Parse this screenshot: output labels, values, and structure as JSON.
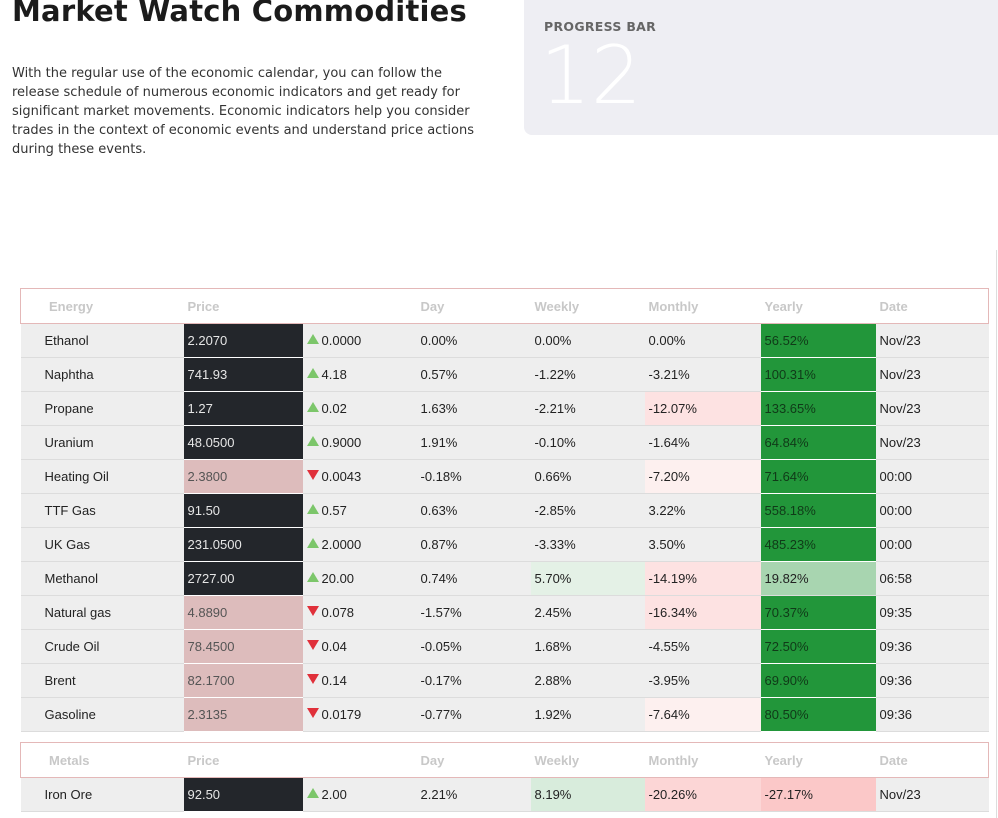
{
  "header": {
    "title": "Market Watch Commodities",
    "description": "With the regular use of the economic calendar, you can follow the release schedule of numerous economic indicators and get ready for significant market movements. Economic indicators help you consider trades in the context of economic events and understand price actions during these events."
  },
  "progress_card": {
    "label": "PROGRESS BAR",
    "value": "12"
  },
  "colors": {
    "up_strong": "#22963a",
    "price_dark": "#23262b",
    "price_down": "#ddbcbc",
    "arrow_up": "#7cc66a",
    "arrow_down": "#e0303a"
  },
  "tables": [
    {
      "id": "energy",
      "headers": [
        "Energy",
        "Price",
        "",
        "Day",
        "Weekly",
        "Monthly",
        "Yearly",
        "Date"
      ],
      "rows": [
        {
          "name": "Ethanol",
          "price": "2.2070",
          "dir": "up",
          "change": "0.0000",
          "day": "0.00%",
          "weekly": "0.00%",
          "monthly": "0.00%",
          "yearly": "56.52%",
          "date": "Nov/23",
          "tones": {
            "weekly": "",
            "monthly": "",
            "yearly": "up-strong"
          }
        },
        {
          "name": "Naphtha",
          "price": "741.93",
          "dir": "up",
          "change": "4.18",
          "day": "0.57%",
          "weekly": "-1.22%",
          "monthly": "-3.21%",
          "yearly": "100.31%",
          "date": "Nov/23",
          "tones": {
            "weekly": "",
            "monthly": "",
            "yearly": "up-strong"
          }
        },
        {
          "name": "Propane",
          "price": "1.27",
          "dir": "up",
          "change": "0.02",
          "day": "1.63%",
          "weekly": "-2.21%",
          "monthly": "-12.07%",
          "yearly": "133.65%",
          "date": "Nov/23",
          "tones": {
            "weekly": "",
            "monthly": "down-light",
            "yearly": "up-strong"
          }
        },
        {
          "name": "Uranium",
          "price": "48.0500",
          "dir": "up",
          "change": "0.9000",
          "day": "1.91%",
          "weekly": "-0.10%",
          "monthly": "-1.64%",
          "yearly": "64.84%",
          "date": "Nov/23",
          "tones": {
            "weekly": "",
            "monthly": "",
            "yearly": "up-strong"
          }
        },
        {
          "name": "Heating Oil",
          "price": "2.3800",
          "dir": "down",
          "change": "0.0043",
          "day": "-0.18%",
          "weekly": "0.66%",
          "monthly": "-7.20%",
          "yearly": "71.64%",
          "date": "00:00",
          "tones": {
            "weekly": "",
            "monthly": "down-faint",
            "yearly": "up-strong"
          }
        },
        {
          "name": "TTF Gas",
          "price": "91.50",
          "dir": "up",
          "change": "0.57",
          "day": "0.63%",
          "weekly": "-2.85%",
          "monthly": "3.22%",
          "yearly": "558.18%",
          "date": "00:00",
          "tones": {
            "weekly": "",
            "monthly": "",
            "yearly": "up-strong"
          }
        },
        {
          "name": "UK Gas",
          "price": "231.0500",
          "dir": "up",
          "change": "2.0000",
          "day": "0.87%",
          "weekly": "-3.33%",
          "monthly": "3.50%",
          "yearly": "485.23%",
          "date": "00:00",
          "tones": {
            "weekly": "",
            "monthly": "",
            "yearly": "up-strong"
          }
        },
        {
          "name": "Methanol",
          "price": "2727.00",
          "dir": "up",
          "change": "20.00",
          "day": "0.74%",
          "weekly": "5.70%",
          "monthly": "-14.19%",
          "yearly": "19.82%",
          "date": "06:58",
          "tones": {
            "weekly": "up-light",
            "monthly": "down-light",
            "yearly": "up-mid"
          }
        },
        {
          "name": "Natural gas",
          "price": "4.8890",
          "dir": "down",
          "change": "0.078",
          "day": "-1.57%",
          "weekly": "2.45%",
          "monthly": "-16.34%",
          "yearly": "70.37%",
          "date": "09:35",
          "tones": {
            "weekly": "",
            "monthly": "down-light",
            "yearly": "up-strong"
          }
        },
        {
          "name": "Crude Oil",
          "price": "78.4500",
          "dir": "down",
          "change": "0.04",
          "day": "-0.05%",
          "weekly": "1.68%",
          "monthly": "-4.55%",
          "yearly": "72.50%",
          "date": "09:36",
          "tones": {
            "weekly": "",
            "monthly": "",
            "yearly": "up-strong"
          }
        },
        {
          "name": "Brent",
          "price": "82.1700",
          "dir": "down",
          "change": "0.14",
          "day": "-0.17%",
          "weekly": "2.88%",
          "monthly": "-3.95%",
          "yearly": "69.90%",
          "date": "09:36",
          "tones": {
            "weekly": "",
            "monthly": "",
            "yearly": "up-strong"
          }
        },
        {
          "name": "Gasoline",
          "price": "2.3135",
          "dir": "down",
          "change": "0.0179",
          "day": "-0.77%",
          "weekly": "1.92%",
          "monthly": "-7.64%",
          "yearly": "80.50%",
          "date": "09:36",
          "tones": {
            "weekly": "",
            "monthly": "down-faint",
            "yearly": "up-strong"
          }
        }
      ]
    },
    {
      "id": "metals",
      "headers": [
        "Metals",
        "Price",
        "",
        "Day",
        "Weekly",
        "Monthly",
        "Yearly",
        "Date"
      ],
      "rows": [
        {
          "name": "Iron Ore",
          "price": "92.50",
          "dir": "up",
          "change": "2.00",
          "day": "2.21%",
          "weekly": "8.19%",
          "monthly": "-20.26%",
          "yearly": "-27.17%",
          "date": "Nov/23",
          "tones": {
            "weekly": "up-light2",
            "monthly": "down-mid",
            "yearly": "down-strong"
          }
        }
      ]
    }
  ]
}
